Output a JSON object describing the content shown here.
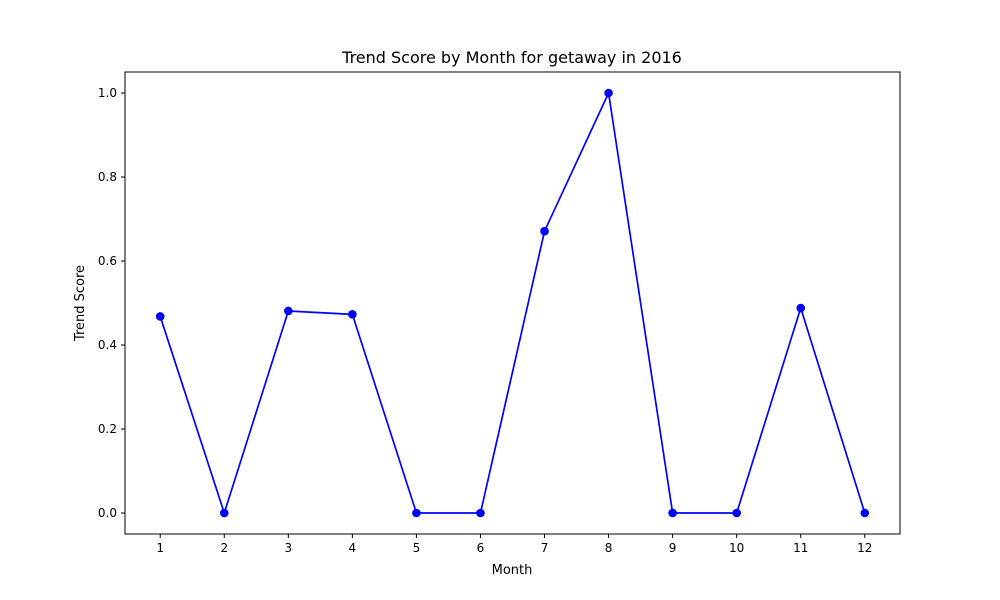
{
  "chart_data": {
    "type": "line",
    "title": "Trend Score by Month for getaway in 2016",
    "xlabel": "Month",
    "ylabel": "Trend Score",
    "x": [
      1,
      2,
      3,
      4,
      5,
      6,
      7,
      8,
      9,
      10,
      11,
      12
    ],
    "x_tick_labels": [
      "1",
      "2",
      "3",
      "4",
      "5",
      "6",
      "7",
      "8",
      "9",
      "10",
      "11",
      "12"
    ],
    "y_ticks": [
      0.0,
      0.2,
      0.4,
      0.6,
      0.8,
      1.0
    ],
    "y_tick_labels": [
      "0.0",
      "0.2",
      "0.4",
      "0.6",
      "0.8",
      "1.0"
    ],
    "xlim": [
      0.45,
      12.55
    ],
    "ylim": [
      -0.05,
      1.05
    ],
    "grid": false,
    "series": [
      {
        "values": [
          0.468,
          0.0,
          0.481,
          0.473,
          0.0,
          0.0,
          0.671,
          1.0,
          0.0,
          0.0,
          0.488,
          0.0
        ],
        "color": "#0000ff",
        "marker": "circle"
      }
    ]
  }
}
